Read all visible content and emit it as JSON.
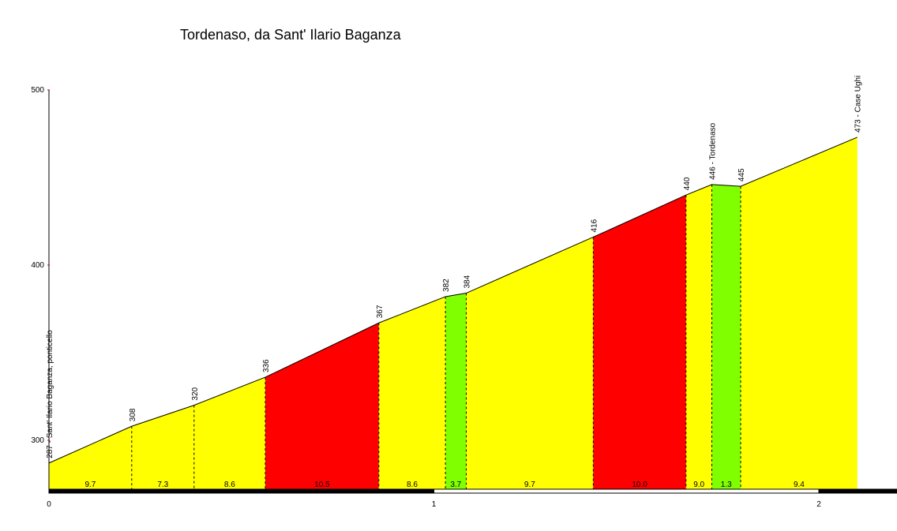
{
  "chart_data": {
    "type": "area",
    "title": "Tordenaso, da Sant' Ilario Baganza",
    "xlabel": "",
    "ylabel": "",
    "xlim": [
      0,
      2.15
    ],
    "ylim": [
      272,
      500
    ],
    "x_ticks": [
      0,
      1,
      2
    ],
    "y_ticks": [
      300,
      400,
      500
    ],
    "points": [
      {
        "x": 0.0,
        "y": 287,
        "label": "287 - Sant' Ilario Baganza, ponticello"
      },
      {
        "x": 0.215,
        "y": 308,
        "label": "308"
      },
      {
        "x": 0.377,
        "y": 320,
        "label": "320"
      },
      {
        "x": 0.562,
        "y": 336,
        "label": "336"
      },
      {
        "x": 0.857,
        "y": 367,
        "label": "367"
      },
      {
        "x": 1.03,
        "y": 382,
        "label": "382"
      },
      {
        "x": 1.084,
        "y": 384,
        "label": "384"
      },
      {
        "x": 1.414,
        "y": 416,
        "label": "416"
      },
      {
        "x": 1.655,
        "y": 440,
        "label": "440"
      },
      {
        "x": 1.722,
        "y": 446,
        "label": "446 - Tordenaso"
      },
      {
        "x": 1.797,
        "y": 445,
        "label": "445"
      },
      {
        "x": 2.1,
        "y": 473,
        "label": "473 - Case Ughi"
      }
    ],
    "segments": [
      {
        "gradient": "9.7",
        "color": "#ffff00"
      },
      {
        "gradient": "7.3",
        "color": "#ffff00"
      },
      {
        "gradient": "8.6",
        "color": "#ffff00"
      },
      {
        "gradient": "10.5",
        "color": "#ff0000"
      },
      {
        "gradient": "8.6",
        "color": "#ffff00"
      },
      {
        "gradient": "3.7",
        "color": "#80ff00"
      },
      {
        "gradient": "9.7",
        "color": "#ffff00"
      },
      {
        "gradient": "10.0",
        "color": "#ff0000"
      },
      {
        "gradient": "9.0",
        "color": "#ffff00"
      },
      {
        "gradient": "1.3",
        "color": "#80ff00"
      },
      {
        "gradient": "9.4",
        "color": "#ffff00"
      }
    ],
    "colors": {
      "steep": "#ff0000",
      "moderate": "#ffff00",
      "gentle": "#80ff00",
      "y_tick": "#cc0000"
    }
  }
}
